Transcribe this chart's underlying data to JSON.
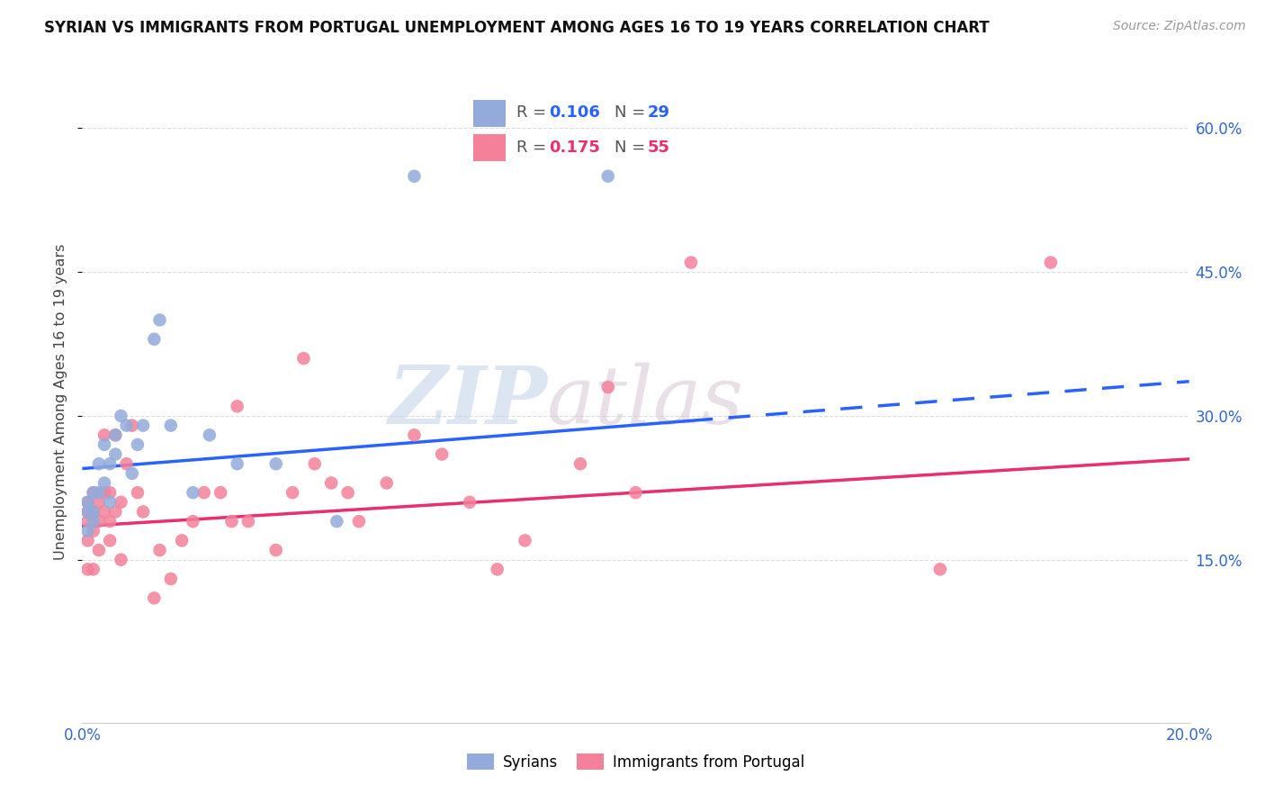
{
  "title": "SYRIAN VS IMMIGRANTS FROM PORTUGAL UNEMPLOYMENT AMONG AGES 16 TO 19 YEARS CORRELATION CHART",
  "source": "Source: ZipAtlas.com",
  "ylabel": "Unemployment Among Ages 16 to 19 years",
  "xlim": [
    0.0,
    0.2
  ],
  "ylim": [
    -0.02,
    0.65
  ],
  "x_ticks": [
    0.0,
    0.2
  ],
  "y_ticks": [
    0.15,
    0.3,
    0.45,
    0.6
  ],
  "syrian_color": "#92ABDB",
  "portugal_color": "#F4809A",
  "trend_syrian_color": "#2962FF",
  "trend_portugal_color": "#E83070",
  "watermark_zip": "ZIP",
  "watermark_atlas": "atlas",
  "legend_r_syrian": "0.106",
  "legend_n_syrian": "29",
  "legend_r_portugal": "0.175",
  "legend_n_portugal": "55",
  "syrian_x": [
    0.001,
    0.001,
    0.001,
    0.002,
    0.002,
    0.002,
    0.003,
    0.003,
    0.004,
    0.004,
    0.005,
    0.005,
    0.006,
    0.006,
    0.007,
    0.008,
    0.009,
    0.01,
    0.011,
    0.013,
    0.014,
    0.016,
    0.02,
    0.023,
    0.028,
    0.035,
    0.046,
    0.06,
    0.095
  ],
  "syrian_y": [
    0.21,
    0.2,
    0.18,
    0.22,
    0.2,
    0.19,
    0.25,
    0.22,
    0.27,
    0.23,
    0.25,
    0.21,
    0.28,
    0.26,
    0.3,
    0.29,
    0.24,
    0.27,
    0.29,
    0.38,
    0.4,
    0.29,
    0.22,
    0.28,
    0.25,
    0.25,
    0.19,
    0.55,
    0.55
  ],
  "portugal_x": [
    0.001,
    0.001,
    0.001,
    0.001,
    0.001,
    0.002,
    0.002,
    0.002,
    0.002,
    0.003,
    0.003,
    0.003,
    0.004,
    0.004,
    0.004,
    0.005,
    0.005,
    0.005,
    0.006,
    0.006,
    0.007,
    0.007,
    0.008,
    0.009,
    0.01,
    0.011,
    0.013,
    0.014,
    0.016,
    0.018,
    0.02,
    0.022,
    0.025,
    0.027,
    0.028,
    0.03,
    0.035,
    0.038,
    0.04,
    0.042,
    0.045,
    0.048,
    0.05,
    0.055,
    0.06,
    0.065,
    0.07,
    0.075,
    0.08,
    0.09,
    0.095,
    0.1,
    0.11,
    0.155,
    0.175
  ],
  "portugal_y": [
    0.21,
    0.2,
    0.19,
    0.17,
    0.14,
    0.22,
    0.2,
    0.18,
    0.14,
    0.21,
    0.19,
    0.16,
    0.22,
    0.2,
    0.28,
    0.22,
    0.19,
    0.17,
    0.28,
    0.2,
    0.21,
    0.15,
    0.25,
    0.29,
    0.22,
    0.2,
    0.11,
    0.16,
    0.13,
    0.17,
    0.19,
    0.22,
    0.22,
    0.19,
    0.31,
    0.19,
    0.16,
    0.22,
    0.36,
    0.25,
    0.23,
    0.22,
    0.19,
    0.23,
    0.28,
    0.26,
    0.21,
    0.14,
    0.17,
    0.25,
    0.33,
    0.22,
    0.46,
    0.14,
    0.46
  ],
  "trend_syrian_x0": 0.0,
  "trend_syrian_y0": 0.245,
  "trend_syrian_x1": 0.11,
  "trend_syrian_y1": 0.295,
  "trend_syrian_dash_x0": 0.11,
  "trend_syrian_dash_x1": 0.2,
  "trend_portugal_x0": 0.0,
  "trend_portugal_y0": 0.185,
  "trend_portugal_x1": 0.2,
  "trend_portugal_y1": 0.255
}
